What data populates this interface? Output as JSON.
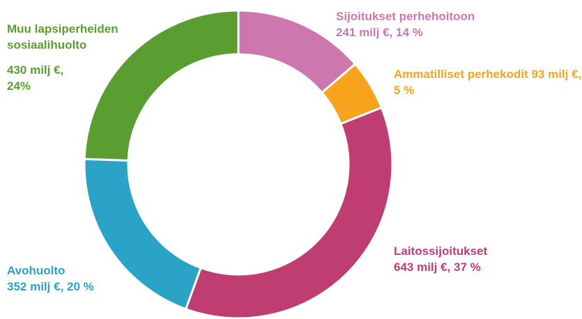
{
  "chart_data": {
    "type": "donut",
    "categories": [
      "Sijoitukset perhehoitoon",
      "Ammatilliset perhekodit",
      "Laitossijoitukset",
      "Avohuolto",
      "Muu lapsiperheiden sosiaalihuolto"
    ],
    "values": [
      241,
      93,
      643,
      352,
      430
    ],
    "value_labels": [
      "241 milj €, 14 %",
      "93 milj €, 5 %",
      "643 milj €, 37 %",
      "352 milj €, 20 %",
      "430 milj €, 24%"
    ],
    "colors": [
      "#cc77ad",
      "#f5a41c",
      "#bf3d70",
      "#2aa3c6",
      "#5a9e32"
    ]
  }
}
